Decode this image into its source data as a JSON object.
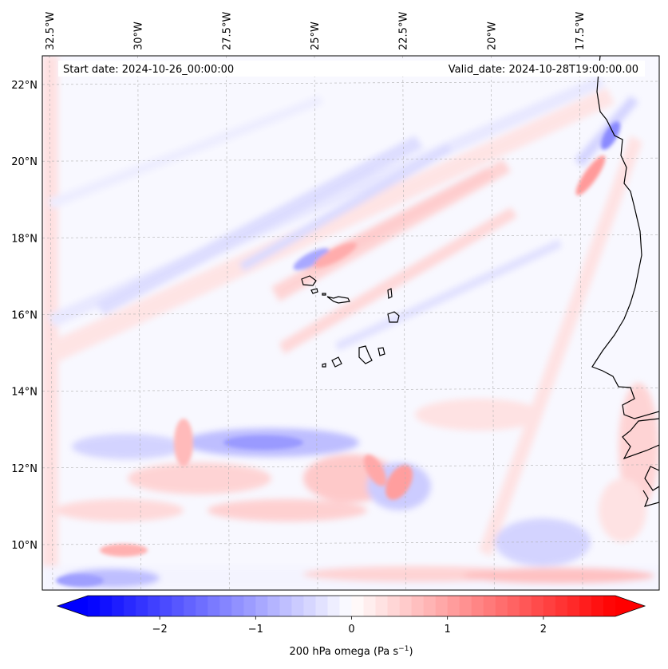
{
  "map": {
    "start_date_text": "Start date: 2024-10-26_00:00:00",
    "valid_date_text": "Valid_date: 2024-10-28T19:00:00.00",
    "lon_ticks": [
      {
        "value": -32.5,
        "label": "32.5°W"
      },
      {
        "value": -30.0,
        "label": "30°W"
      },
      {
        "value": -27.5,
        "label": "27.5°W"
      },
      {
        "value": -25.0,
        "label": "25°W"
      },
      {
        "value": -22.5,
        "label": "22.5°W"
      },
      {
        "value": -20.0,
        "label": "20°W"
      },
      {
        "value": -17.5,
        "label": "17.5°W"
      }
    ],
    "lat_ticks": [
      {
        "value": 22,
        "label": "22°N"
      },
      {
        "value": 20,
        "label": "20°N"
      },
      {
        "value": 18,
        "label": "18°N"
      },
      {
        "value": 16,
        "label": "16°N"
      },
      {
        "value": 14,
        "label": "14°N"
      },
      {
        "value": 12,
        "label": "12°N"
      },
      {
        "value": 10,
        "label": "10°N"
      }
    ],
    "gridlines": true,
    "field": "200 hPa omega",
    "colormap": "bwr",
    "colors": {
      "negative": "#0000ff",
      "zero": "#ffffff",
      "positive": "#ff0000",
      "coast": "#000000"
    }
  },
  "colorbar": {
    "label": "200 hPa omega (Pa s",
    "label_exponent": "−1",
    "label_close": ")",
    "min": -2.75,
    "max": 2.75,
    "extend": "both",
    "ticks": [
      {
        "value": -2,
        "label": "−2"
      },
      {
        "value": -1,
        "label": "−1"
      },
      {
        "value": 0,
        "label": "0"
      },
      {
        "value": 1,
        "label": "1"
      },
      {
        "value": 2,
        "label": "2"
      }
    ]
  }
}
